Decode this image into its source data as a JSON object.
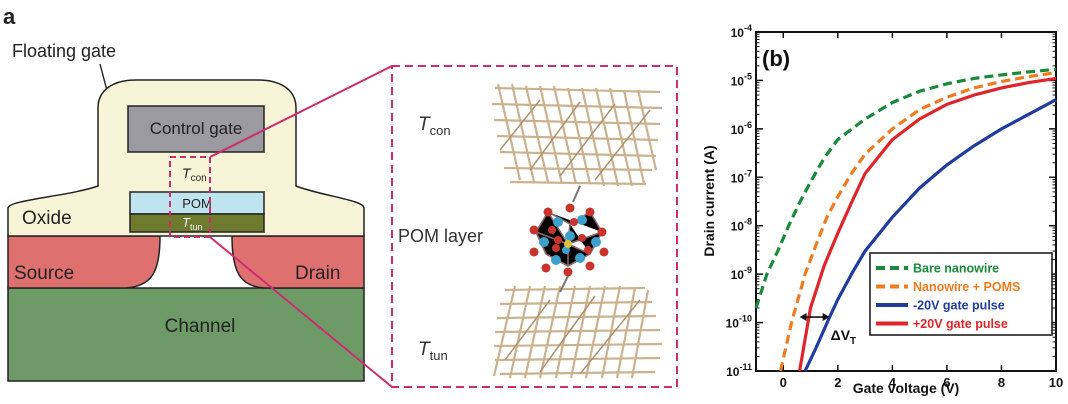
{
  "panel_a": {
    "panel_label": "a",
    "floating_gate_label": "Floating gate",
    "control_gate_label": "Control gate",
    "oxide_label": "Oxide",
    "pom_label": "POM",
    "t_con": "T",
    "t_con_sub": "con",
    "t_tun": "T",
    "t_tun_sub": "tun",
    "source_label": "Source",
    "drain_label": "Drain",
    "channel_label": "Channel",
    "pom_layer_label": "POM layer",
    "colors": {
      "oxide": "#f7f4d8",
      "control_gate": "#9a9aa0",
      "pom": "#bfe3ef",
      "tunnel": "#6e7a2e",
      "source_drain": "#de7070",
      "channel": "#6e9a68",
      "zoom_box": "#cc2d6e",
      "molecule_oxygen": "#c8342c",
      "molecule_metal": "#3d9fcb",
      "organic_layer": "#c9ae8a"
    }
  },
  "chart_data": {
    "type": "line",
    "panel_label": "(b)",
    "xlabel": "Gate voltage (V)",
    "ylabel": "Drain current (A)",
    "xlim": [
      -1,
      10
    ],
    "ylim": [
      1e-11,
      0.0001
    ],
    "log_y": true,
    "x_ticks": [
      "0",
      "2",
      "4",
      "6",
      "8",
      "10"
    ],
    "y_ticks": [
      "10-11",
      "10-10",
      "10-9",
      "10-8",
      "10-7",
      "10-6",
      "10-5",
      "10-4"
    ],
    "legend_position": "bottom-right",
    "annotation": {
      "text": "ΔV",
      "subscript": "T",
      "x_from": 0.6,
      "x_to": 1.7,
      "y": 1.3e-10
    },
    "series": [
      {
        "name": "Bare nanowire",
        "color": "#1a8a3a",
        "dashed": true,
        "x": [
          -1.0,
          -0.6,
          -0.2,
          0.2,
          0.6,
          1.0,
          1.5,
          2.0,
          3.0,
          4.0,
          5.0,
          6.0,
          7.0,
          8.0,
          9.0,
          10.0
        ],
        "y": [
          2e-10,
          1e-09,
          3e-09,
          1e-08,
          3e-08,
          8e-08,
          2.5e-07,
          6e-07,
          1.6e-06,
          3.5e-06,
          6e-06,
          8.5e-06,
          1.1e-05,
          1.3e-05,
          1.5e-05,
          1.7e-05
        ]
      },
      {
        "name": "Nanowire + POMS",
        "color": "#f07a1e",
        "dashed": true,
        "x": [
          -0.1,
          0.3,
          0.8,
          1.2,
          1.6,
          2.0,
          2.5,
          3.0,
          4.0,
          5.0,
          6.0,
          7.0,
          8.0,
          9.0,
          10.0
        ],
        "y": [
          1e-11,
          1e-10,
          1e-09,
          4e-09,
          1.5e-08,
          4e-08,
          1.2e-07,
          3e-07,
          1e-06,
          2.5e-06,
          4.5e-06,
          7e-06,
          9.5e-06,
          1.2e-05,
          1.45e-05
        ]
      },
      {
        "name": "-20V gate pulse",
        "color": "#1f3c9e",
        "dashed": false,
        "x": [
          0.8,
          1.2,
          1.7,
          2.0,
          2.5,
          3.0,
          4.0,
          5.0,
          6.0,
          7.0,
          8.0,
          9.0,
          10.0
        ],
        "y": [
          1e-11,
          3e-11,
          1.3e-10,
          3e-10,
          1e-09,
          3e-09,
          1.5e-08,
          6e-08,
          1.8e-07,
          4.5e-07,
          1e-06,
          2e-06,
          4e-06
        ]
      },
      {
        "name": "+20V gate pulse",
        "color": "#e0242a",
        "dashed": false,
        "x": [
          0.6,
          1.0,
          1.5,
          2.0,
          2.5,
          3.0,
          4.0,
          5.0,
          6.0,
          7.0,
          8.0,
          9.0,
          10.0
        ],
        "y": [
          1e-11,
          2e-10,
          1.5e-09,
          7e-09,
          3e-08,
          1.2e-07,
          6e-07,
          1.6e-06,
          3.2e-06,
          5e-06,
          7e-06,
          9e-06,
          1.1e-05
        ]
      }
    ]
  }
}
